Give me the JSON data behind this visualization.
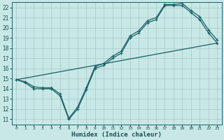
{
  "title": "",
  "xlabel": "Humidex (Indice chaleur)",
  "bg_color": "#c8e8e8",
  "grid_color": "#a8c8c8",
  "line_color": "#1a6060",
  "xlim": [
    -0.5,
    23.5
  ],
  "ylim": [
    10.5,
    22.5
  ],
  "xticks": [
    0,
    1,
    2,
    3,
    4,
    5,
    6,
    7,
    8,
    9,
    10,
    11,
    12,
    13,
    14,
    15,
    16,
    17,
    18,
    19,
    20,
    21,
    22,
    23
  ],
  "yticks": [
    11,
    12,
    13,
    14,
    15,
    16,
    17,
    18,
    19,
    20,
    21,
    22
  ],
  "line1_x": [
    0,
    1,
    2,
    3,
    4,
    5,
    6,
    7,
    8,
    9,
    10,
    11,
    12,
    13,
    14,
    15,
    16,
    17,
    18,
    19,
    20,
    21,
    22,
    23
  ],
  "line1_y": [
    14.9,
    14.6,
    14.0,
    14.0,
    14.0,
    13.3,
    11.0,
    12.0,
    13.9,
    16.0,
    16.3,
    17.0,
    17.5,
    19.0,
    19.5,
    20.5,
    20.8,
    22.2,
    22.2,
    22.2,
    21.5,
    20.8,
    19.5,
    18.5
  ],
  "line2_x": [
    0,
    1,
    2,
    3,
    4,
    5,
    6,
    7,
    8,
    9,
    10,
    11,
    12,
    13,
    14,
    15,
    16,
    17,
    18,
    19,
    20,
    21,
    22,
    23
  ],
  "line2_y": [
    14.9,
    14.7,
    14.2,
    14.1,
    14.1,
    13.5,
    11.1,
    12.2,
    14.1,
    16.2,
    16.5,
    17.2,
    17.7,
    19.2,
    19.7,
    20.7,
    21.0,
    22.3,
    22.3,
    22.4,
    21.7,
    21.1,
    19.8,
    18.8
  ],
  "line3_x": [
    0,
    23
  ],
  "line3_y": [
    14.9,
    18.5
  ],
  "marker": "+",
  "marker_size": 3.0,
  "linewidth": 0.9
}
